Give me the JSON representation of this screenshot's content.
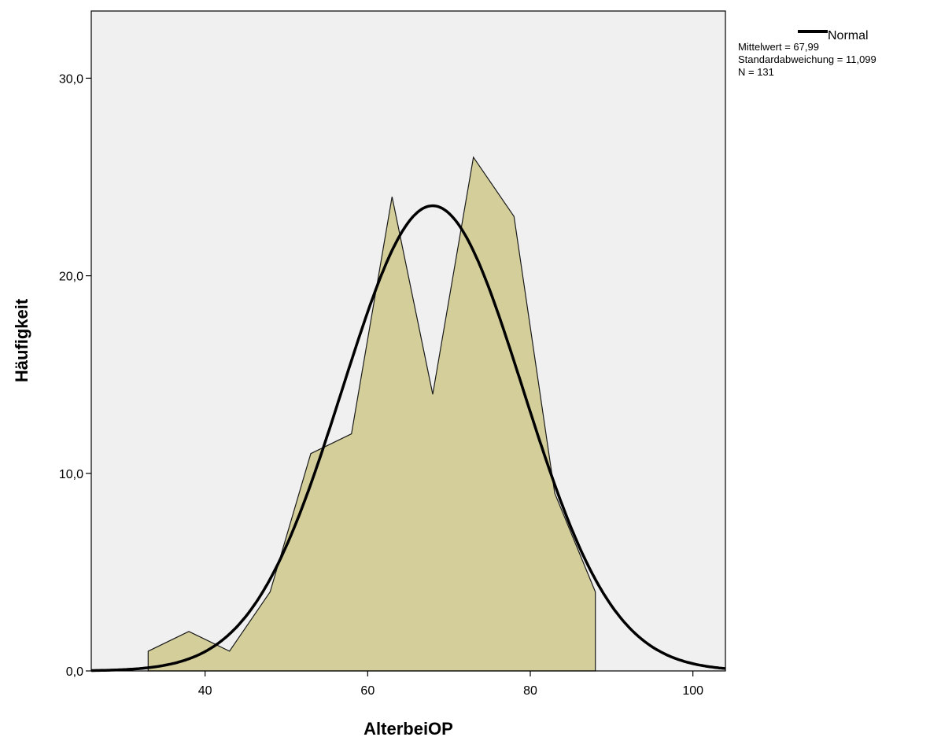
{
  "chart_data": {
    "type": "area",
    "xlabel": "AlterbeiOP",
    "ylabel": "Häufigkeit",
    "xlim": [
      26,
      104
    ],
    "ylim": [
      0,
      33.4
    ],
    "x_ticks": [
      40,
      60,
      80,
      100
    ],
    "x_tick_labels": [
      "40",
      "60",
      "80",
      "100"
    ],
    "y_ticks": [
      0,
      10,
      20,
      30
    ],
    "y_tick_labels": [
      "0,0",
      "10,0",
      "20,0",
      "30,0"
    ],
    "grid": false,
    "legend_position": "top-right",
    "colors": {
      "plot_background": "#f0f0f0",
      "area_fill": "#d3ce9a",
      "area_stroke": "#1a1a1a",
      "curve": "#000000"
    },
    "series": [
      {
        "type": "area",
        "x": [
          33,
          33,
          38,
          43,
          48,
          53,
          58,
          63,
          68,
          73,
          78,
          83,
          88,
          88
        ],
        "values": [
          0,
          1,
          2,
          1,
          4,
          11,
          12,
          24,
          14,
          26,
          23,
          9,
          4,
          0
        ]
      },
      {
        "type": "line",
        "name": "Normal",
        "distribution": {
          "mean": 67.99,
          "sd": 11.099,
          "n": 131,
          "bin_width": 5
        }
      }
    ],
    "legend": {
      "entry": "Normal",
      "stats": [
        "Mittelwert = 67,99",
        "Standardabweichung = 11,099",
        "N = 131"
      ]
    }
  }
}
